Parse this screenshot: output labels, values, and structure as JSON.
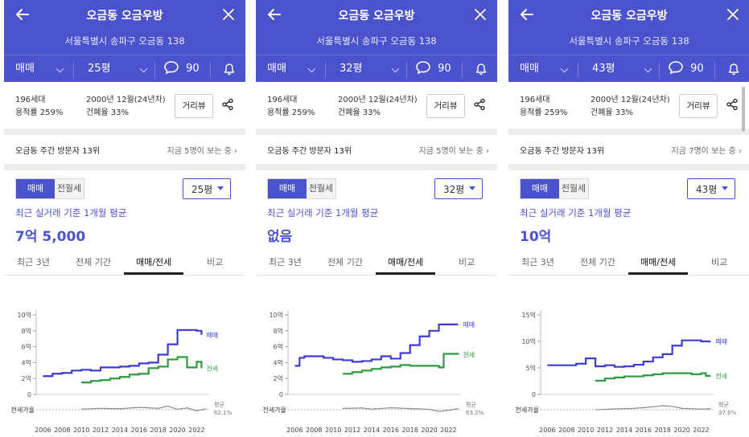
{
  "colors": {
    "header": "#4a52cc",
    "accent": "#4a52cc",
    "sale_line": "#3b3bd6",
    "rent_line": "#2e9a3c",
    "ratio_line": "#8a8a8a"
  },
  "panels": [
    {
      "header": {
        "title": "오금동 오금우방",
        "address": "서울특별시 송파구 오금동 138",
        "trade_type": "매매",
        "size": "25평",
        "comment_count": "90"
      },
      "info": {
        "households": "196세대",
        "floor_area_ratio": "용적률 259%",
        "built": "2000년 12월(24년차)",
        "coverage_ratio": "건폐율 33%",
        "distance_button": "거리뷰"
      },
      "visitors": {
        "rank": "오금동 주간 방문자 13위",
        "viewing": "지금 5명이 보는 중"
      },
      "toggle": {
        "sale": "매매",
        "rent": "전월세"
      },
      "size_select": "25평",
      "summary": {
        "label": "최근 실거래 기준 1개월 평균",
        "price": "7억 5,000"
      },
      "tabs": [
        "최근 3년",
        "전체 기간",
        "매매/전세",
        "비교"
      ],
      "chart_data": {
        "type": "line",
        "x_ticks": [
          "2006",
          "2008",
          "2010",
          "2012",
          "2014",
          "2016",
          "2018",
          "2020",
          "2022"
        ],
        "y_ticks": [
          "0",
          "2억",
          "4억",
          "6억",
          "8억",
          "10억"
        ],
        "ylim": [
          0,
          10
        ],
        "series": [
          {
            "name": "매매",
            "points": [
              [
                2006,
                2.3
              ],
              [
                2007,
                2.6
              ],
              [
                2008,
                2.7
              ],
              [
                2009,
                3.0
              ],
              [
                2010,
                3.1
              ],
              [
                2011,
                3.0
              ],
              [
                2012,
                3.4
              ],
              [
                2013,
                3.4
              ],
              [
                2014,
                3.5
              ],
              [
                2015,
                3.6
              ],
              [
                2016,
                3.9
              ],
              [
                2017,
                4.0
              ],
              [
                2018,
                5.0
              ],
              [
                2019,
                6.3
              ],
              [
                2020,
                8.1
              ],
              [
                2022,
                8.0
              ],
              [
                2022.5,
                7.5
              ]
            ]
          },
          {
            "name": "전세",
            "points": [
              [
                2010,
                1.5
              ],
              [
                2011,
                1.7
              ],
              [
                2012,
                1.8
              ],
              [
                2013,
                2.0
              ],
              [
                2014,
                2.2
              ],
              [
                2015,
                2.5
              ],
              [
                2016,
                2.6
              ],
              [
                2017,
                3.3
              ],
              [
                2018,
                3.5
              ],
              [
                2019,
                4.4
              ],
              [
                2020,
                4.7
              ],
              [
                2021,
                3.4
              ],
              [
                2022,
                4.1
              ],
              [
                2022.5,
                3.3
              ]
            ]
          }
        ],
        "ratio_label": "전세가율",
        "ratio_avg_label": "평균",
        "ratio_avg": "62.1%"
      }
    },
    {
      "header": {
        "title": "오금동 오금우방",
        "address": "서울특별시 송파구 오금동 138",
        "trade_type": "매매",
        "size": "32평",
        "comment_count": "90"
      },
      "info": {
        "households": "196세대",
        "floor_area_ratio": "용적률 259%",
        "built": "2000년 12월(24년차)",
        "coverage_ratio": "건폐율 33%",
        "distance_button": "거리뷰"
      },
      "visitors": {
        "rank": "오금동 주간 방문자 13위",
        "viewing": "지금 5명이 보는 중"
      },
      "toggle": {
        "sale": "매매",
        "rent": "전월세"
      },
      "size_select": "32평",
      "summary": {
        "label": "최근 실거래 기준 1개월 평균",
        "price": "없음"
      },
      "tabs": [
        "최근 3년",
        "전체 기간",
        "매매/전세",
        "비교"
      ],
      "chart_data": {
        "type": "line",
        "x_ticks": [
          "2006",
          "2008",
          "2010",
          "2012",
          "2014",
          "2016",
          "2018",
          "2020",
          "2022"
        ],
        "y_ticks": [
          "0",
          "2억",
          "4억",
          "6억",
          "8억",
          "10억"
        ],
        "ylim": [
          0,
          10
        ],
        "series": [
          {
            "name": "매매",
            "points": [
              [
                2006,
                3.6
              ],
              [
                2006.5,
                4.6
              ],
              [
                2007,
                4.8
              ],
              [
                2009,
                4.6
              ],
              [
                2010,
                4.4
              ],
              [
                2011,
                4.3
              ],
              [
                2012,
                4.1
              ],
              [
                2013,
                4.2
              ],
              [
                2014,
                4.4
              ],
              [
                2015,
                4.8
              ],
              [
                2016,
                4.5
              ],
              [
                2017,
                5.2
              ],
              [
                2018,
                6.2
              ],
              [
                2019,
                7.3
              ],
              [
                2020,
                8.0
              ],
              [
                2021,
                8.8
              ],
              [
                2022,
                8.8
              ],
              [
                2023,
                8.8
              ]
            ]
          },
          {
            "name": "전세",
            "points": [
              [
                2011,
                2.6
              ],
              [
                2012,
                2.8
              ],
              [
                2013,
                3.0
              ],
              [
                2014,
                3.2
              ],
              [
                2015,
                3.4
              ],
              [
                2016,
                3.5
              ],
              [
                2017,
                3.7
              ],
              [
                2018,
                3.6
              ],
              [
                2019,
                3.6
              ],
              [
                2020,
                3.6
              ],
              [
                2021,
                3.4
              ],
              [
                2021.5,
                5.1
              ],
              [
                2023,
                5.0
              ]
            ]
          }
        ],
        "ratio_label": "전세가율",
        "ratio_avg_label": "평균",
        "ratio_avg": "63.2%"
      }
    },
    {
      "header": {
        "title": "오금동 오금우방",
        "address": "서울특별시 송파구 오금동 138",
        "trade_type": "매매",
        "size": "43평",
        "comment_count": "90"
      },
      "info": {
        "households": "196세대",
        "floor_area_ratio": "용적률 259%",
        "built": "2000년 12월(24년차)",
        "coverage_ratio": "건폐율 33%",
        "distance_button": "거리뷰"
      },
      "visitors": {
        "rank": "오금동 주간 방문자 13위",
        "viewing": "지금 7명이 보는 중"
      },
      "toggle": {
        "sale": "매매",
        "rent": "전월세"
      },
      "size_select": "43평",
      "summary": {
        "label": "최근 실거래 기준 1개월 평균",
        "price": "10억"
      },
      "tabs": [
        "최근 3년",
        "전체 기간",
        "매매/전세",
        "비교"
      ],
      "chart_data": {
        "type": "line",
        "x_ticks": [
          "2006",
          "2008",
          "2010",
          "2012",
          "2014",
          "2016",
          "2018",
          "2020",
          "2022"
        ],
        "y_ticks": [
          "0",
          "5억",
          "10억",
          "15억"
        ],
        "ylim": [
          0,
          15
        ],
        "series": [
          {
            "name": "매매",
            "points": [
              [
                2006,
                5.5
              ],
              [
                2008,
                5.5
              ],
              [
                2009,
                5.8
              ],
              [
                2010,
                6.8
              ],
              [
                2011,
                5.3
              ],
              [
                2012,
                5.5
              ],
              [
                2013,
                5.2
              ],
              [
                2014,
                5.3
              ],
              [
                2015,
                5.6
              ],
              [
                2016,
                6.2
              ],
              [
                2017,
                7.0
              ],
              [
                2018,
                7.6
              ],
              [
                2019,
                9.2
              ],
              [
                2020,
                10.2
              ],
              [
                2022,
                10.0
              ],
              [
                2023,
                10.0
              ]
            ]
          },
          {
            "name": "전세",
            "points": [
              [
                2011,
                2.6
              ],
              [
                2012,
                3.0
              ],
              [
                2013,
                3.2
              ],
              [
                2014,
                3.4
              ],
              [
                2015,
                3.4
              ],
              [
                2016,
                3.6
              ],
              [
                2017,
                3.8
              ],
              [
                2018,
                4.0
              ],
              [
                2019,
                4.0
              ],
              [
                2020,
                4.0
              ],
              [
                2021,
                3.8
              ],
              [
                2022,
                4.0
              ],
              [
                2022.5,
                3.5
              ],
              [
                2023,
                3.5
              ]
            ]
          }
        ],
        "ratio_label": "전세가율",
        "ratio_avg_label": "평균",
        "ratio_avg": "37.6%"
      }
    }
  ]
}
